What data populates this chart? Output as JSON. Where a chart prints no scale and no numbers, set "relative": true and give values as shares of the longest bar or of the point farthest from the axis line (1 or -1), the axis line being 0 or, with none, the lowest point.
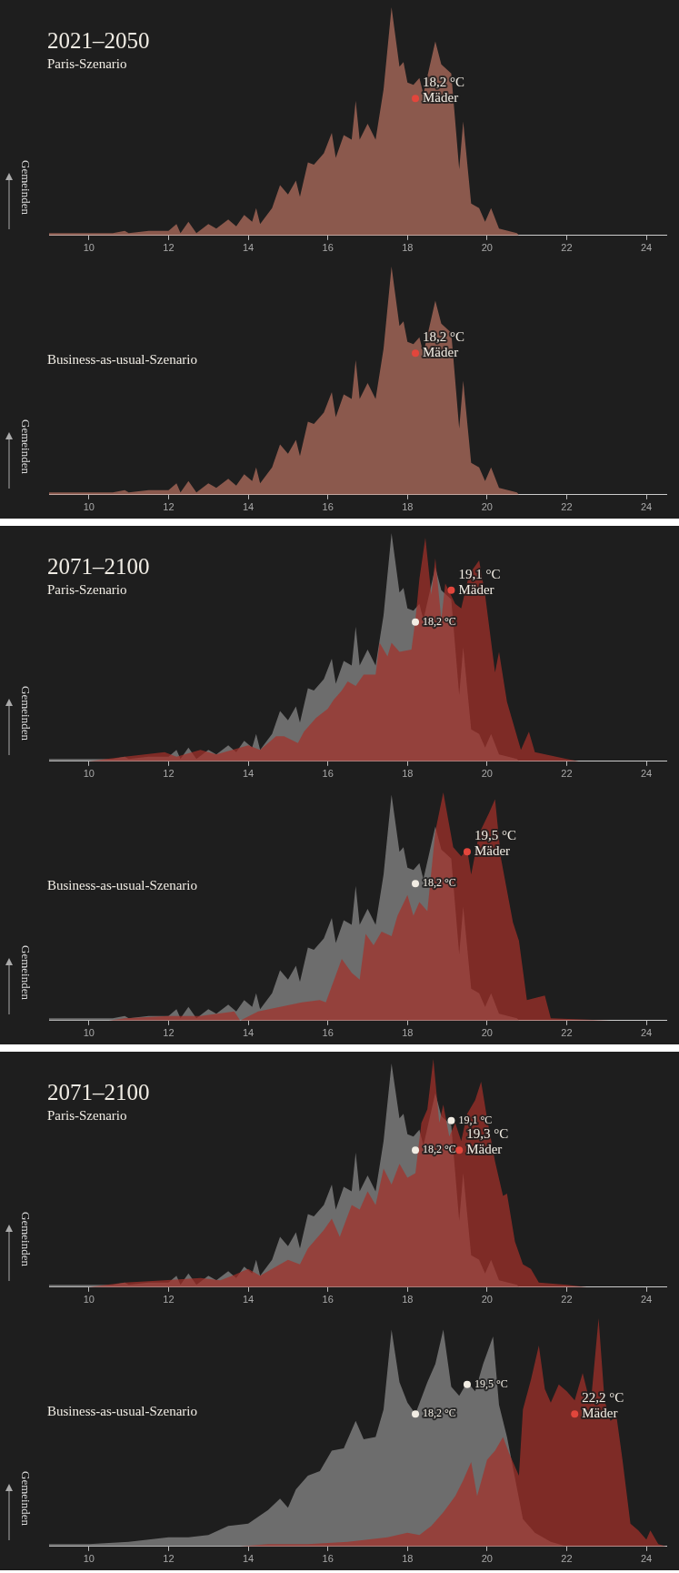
{
  "chart_data": [
    {
      "type": "area",
      "title": "2021–2050",
      "subtitle": "Paris-Szenario",
      "ylabel": "Gemeinden",
      "relative": true,
      "xlim": [
        9,
        24.5
      ],
      "xticks": [
        10,
        12,
        14,
        16,
        18,
        20,
        22,
        24
      ],
      "series": [
        {
          "color": "#b5705f",
          "x": [
            9.0,
            10.6,
            10.9,
            11.0,
            11.5,
            12.0,
            12.2,
            12.3,
            12.5,
            12.7,
            13.0,
            13.2,
            13.5,
            13.7,
            13.9,
            14.1,
            14.2,
            14.3,
            14.6,
            14.8,
            15.0,
            15.2,
            15.3,
            15.5,
            15.65,
            15.9,
            16.1,
            16.2,
            16.4,
            16.6,
            16.7,
            16.8,
            17.0,
            17.2,
            17.4,
            17.6,
            17.8,
            17.9,
            18.0,
            18.15,
            18.3,
            18.4,
            18.7,
            18.85,
            19.1,
            19.3,
            19.4,
            19.6,
            19.8,
            19.95,
            20.1,
            20.3,
            20.75,
            20.8
          ],
          "values": [
            0.01,
            0.01,
            0.02,
            0.01,
            0.02,
            0.02,
            0.05,
            0.01,
            0.06,
            0.01,
            0.05,
            0.03,
            0.07,
            0.04,
            0.09,
            0.06,
            0.12,
            0.05,
            0.12,
            0.22,
            0.18,
            0.24,
            0.17,
            0.32,
            0.31,
            0.36,
            0.45,
            0.34,
            0.44,
            0.42,
            0.59,
            0.42,
            0.49,
            0.42,
            0.64,
            1.0,
            0.74,
            0.76,
            0.67,
            0.66,
            0.69,
            0.62,
            0.85,
            0.75,
            0.71,
            0.29,
            0.5,
            0.14,
            0.12,
            0.06,
            0.12,
            0.03,
            0.01,
            0
          ]
        }
      ],
      "annotations": [
        {
          "text": "18,2 °C\nMäder",
          "x": 18.2,
          "y": 0.6
        }
      ]
    },
    {
      "type": "area",
      "subtitle": "Business-as-usual-Szenario",
      "ylabel": "Gemeinden",
      "relative": true,
      "xlim": [
        9,
        24.5
      ],
      "xticks": [
        10,
        12,
        14,
        16,
        18,
        20,
        22,
        24
      ],
      "series": [
        {
          "color": "#b5705f",
          "x": [
            9.0,
            10.6,
            10.9,
            11.0,
            11.5,
            12.0,
            12.2,
            12.3,
            12.5,
            12.7,
            13.0,
            13.2,
            13.5,
            13.7,
            13.9,
            14.1,
            14.2,
            14.3,
            14.6,
            14.8,
            15.0,
            15.2,
            15.3,
            15.5,
            15.65,
            15.9,
            16.1,
            16.2,
            16.4,
            16.6,
            16.7,
            16.8,
            17.0,
            17.2,
            17.4,
            17.6,
            17.8,
            17.9,
            18.0,
            18.15,
            18.3,
            18.4,
            18.7,
            18.85,
            19.1,
            19.3,
            19.4,
            19.6,
            19.8,
            19.95,
            20.1,
            20.3,
            20.75,
            20.8
          ],
          "values": [
            0.01,
            0.01,
            0.02,
            0.01,
            0.02,
            0.02,
            0.05,
            0.01,
            0.06,
            0.01,
            0.05,
            0.03,
            0.07,
            0.04,
            0.09,
            0.06,
            0.12,
            0.05,
            0.12,
            0.22,
            0.18,
            0.24,
            0.17,
            0.32,
            0.31,
            0.36,
            0.45,
            0.34,
            0.44,
            0.42,
            0.59,
            0.42,
            0.49,
            0.42,
            0.64,
            1.0,
            0.74,
            0.76,
            0.67,
            0.66,
            0.69,
            0.62,
            0.85,
            0.75,
            0.71,
            0.29,
            0.5,
            0.14,
            0.12,
            0.06,
            0.12,
            0.03,
            0.01,
            0
          ]
        }
      ],
      "annotations": [
        {
          "text": "18,2 °C\nMäder",
          "x": 18.2,
          "y": 0.62
        }
      ]
    },
    {
      "type": "area",
      "title": "2071–2100",
      "subtitle": "Paris-Szenario",
      "ylabel": "Gemeinden",
      "relative": true,
      "xlim": [
        9,
        24.5
      ],
      "xticks": [
        10,
        12,
        14,
        16,
        18,
        20,
        22,
        24
      ],
      "series": [
        {
          "color": "#8c8c8c",
          "x": [
            9.0,
            10.6,
            10.9,
            11.0,
            11.5,
            12.0,
            12.2,
            12.3,
            12.5,
            12.7,
            13.0,
            13.2,
            13.5,
            13.7,
            13.9,
            14.1,
            14.2,
            14.3,
            14.6,
            14.8,
            15.0,
            15.2,
            15.3,
            15.5,
            15.65,
            15.9,
            16.1,
            16.2,
            16.4,
            16.6,
            16.7,
            16.8,
            17.0,
            17.2,
            17.4,
            17.6,
            17.8,
            17.9,
            18.0,
            18.15,
            18.3,
            18.4,
            18.7,
            18.85,
            19.1,
            19.3,
            19.4,
            19.6,
            19.8,
            19.95,
            20.1,
            20.3,
            20.75,
            20.8
          ],
          "values": [
            0.01,
            0.01,
            0.02,
            0.01,
            0.02,
            0.02,
            0.05,
            0.01,
            0.06,
            0.01,
            0.05,
            0.03,
            0.07,
            0.04,
            0.09,
            0.06,
            0.12,
            0.05,
            0.12,
            0.22,
            0.18,
            0.24,
            0.17,
            0.32,
            0.31,
            0.36,
            0.45,
            0.34,
            0.44,
            0.42,
            0.59,
            0.42,
            0.49,
            0.42,
            0.64,
            1.0,
            0.74,
            0.76,
            0.67,
            0.66,
            0.69,
            0.62,
            0.85,
            0.75,
            0.71,
            0.29,
            0.5,
            0.14,
            0.12,
            0.06,
            0.12,
            0.03,
            0.01,
            0
          ]
        },
        {
          "color": "#a3302a",
          "x": [
            10.0,
            10.9,
            11.9,
            12.2,
            12.8,
            13.2,
            13.6,
            14.0,
            14.3,
            14.7,
            14.9,
            15.25,
            15.4,
            15.7,
            16.0,
            16.15,
            16.35,
            16.5,
            16.7,
            16.9,
            17.2,
            17.3,
            17.5,
            17.6,
            17.8,
            18.1,
            18.2,
            18.3,
            18.45,
            18.6,
            18.7,
            18.85,
            18.95,
            19.2,
            19.35,
            19.55,
            19.8,
            19.95,
            20.2,
            20.3,
            20.5,
            20.85,
            21.05,
            21.2,
            22.0,
            22.3
          ],
          "values": [
            0,
            0.02,
            0.04,
            0.02,
            0.05,
            0.03,
            0.05,
            0.07,
            0.05,
            0.11,
            0.11,
            0.08,
            0.13,
            0.19,
            0.23,
            0.27,
            0.31,
            0.35,
            0.33,
            0.38,
            0.38,
            0.52,
            0.46,
            0.52,
            0.48,
            0.49,
            0.62,
            0.8,
            0.98,
            0.73,
            0.89,
            0.62,
            0.78,
            0.69,
            0.67,
            0.82,
            0.88,
            0.73,
            0.39,
            0.48,
            0.26,
            0.05,
            0.13,
            0.04,
            0.01,
            0
          ]
        }
      ],
      "annotations": [
        {
          "text": "18,2 °C",
          "x": 18.2,
          "y": 0.61
        },
        {
          "text": "19,1 °C\nMäder",
          "x": 19.1,
          "y": 0.75
        }
      ]
    },
    {
      "type": "area",
      "subtitle": "Business-as-usual-Szenario",
      "ylabel": "Gemeinden",
      "relative": true,
      "xlim": [
        9,
        24.5
      ],
      "xticks": [
        10,
        12,
        14,
        16,
        18,
        20,
        22,
        24
      ],
      "series": [
        {
          "color": "#8c8c8c",
          "x": [
            9.0,
            10.6,
            10.9,
            11.0,
            11.5,
            12.0,
            12.2,
            12.3,
            12.5,
            12.7,
            13.0,
            13.2,
            13.5,
            13.7,
            13.9,
            14.1,
            14.2,
            14.3,
            14.6,
            14.8,
            15.0,
            15.2,
            15.3,
            15.5,
            15.65,
            15.9,
            16.1,
            16.2,
            16.4,
            16.6,
            16.7,
            16.8,
            17.0,
            17.2,
            17.4,
            17.6,
            17.8,
            17.9,
            18.0,
            18.15,
            18.3,
            18.4,
            18.7,
            18.85,
            19.1,
            19.3,
            19.4,
            19.6,
            19.8,
            19.95,
            20.1,
            20.3,
            20.75,
            20.8
          ],
          "values": [
            0.01,
            0.01,
            0.02,
            0.01,
            0.02,
            0.02,
            0.05,
            0.01,
            0.06,
            0.01,
            0.05,
            0.03,
            0.07,
            0.04,
            0.09,
            0.06,
            0.12,
            0.05,
            0.12,
            0.22,
            0.18,
            0.24,
            0.17,
            0.32,
            0.31,
            0.36,
            0.45,
            0.34,
            0.44,
            0.42,
            0.59,
            0.42,
            0.49,
            0.42,
            0.64,
            0.99,
            0.74,
            0.76,
            0.67,
            0.66,
            0.69,
            0.62,
            0.85,
            0.75,
            0.71,
            0.29,
            0.5,
            0.14,
            0.12,
            0.06,
            0.12,
            0.03,
            0.01,
            0
          ]
        },
        {
          "color": "#a3302a",
          "x": [
            10.5,
            10.9,
            12.0,
            12.8,
            13.65,
            13.8,
            14.25,
            14.8,
            15.35,
            15.8,
            15.95,
            16.35,
            16.6,
            16.8,
            16.95,
            17.15,
            17.35,
            17.6,
            17.75,
            18.0,
            18.15,
            18.3,
            18.5,
            18.7,
            18.9,
            19.15,
            19.35,
            19.5,
            19.6,
            19.8,
            20.05,
            20.2,
            20.35,
            20.65,
            20.8,
            21.0,
            21.45,
            21.6,
            23.1
          ],
          "values": [
            0,
            0.01,
            0.02,
            0.02,
            0.04,
            0,
            0.04,
            0.06,
            0.08,
            0.09,
            0.08,
            0.27,
            0.21,
            0.18,
            0.38,
            0.33,
            0.39,
            0.37,
            0.46,
            0.55,
            0.46,
            0.52,
            0.48,
            0.83,
            1.0,
            0.76,
            0.72,
            0.75,
            0.64,
            0.82,
            0.91,
            0.97,
            0.71,
            0.43,
            0.35,
            0.09,
            0.11,
            0.01,
            0
          ]
        }
      ],
      "annotations": [
        {
          "text": "18,2 °C",
          "x": 18.2,
          "y": 0.6
        },
        {
          "text": "19,5 °C\nMäder",
          "x": 19.5,
          "y": 0.74
        }
      ]
    },
    {
      "type": "area",
      "title": "2071–2100",
      "subtitle": "Paris-Szenario",
      "ylabel": "Gemeinden",
      "relative": true,
      "xlim": [
        9,
        24.5
      ],
      "xticks": [
        10,
        12,
        14,
        16,
        18,
        20,
        22,
        24
      ],
      "series": [
        {
          "color": "#8c8c8c",
          "x": [
            9.0,
            10.6,
            10.9,
            11.0,
            11.5,
            12.0,
            12.2,
            12.3,
            12.5,
            12.7,
            13.0,
            13.2,
            13.5,
            13.7,
            13.9,
            14.1,
            14.2,
            14.3,
            14.6,
            14.8,
            15.0,
            15.2,
            15.3,
            15.5,
            15.65,
            15.9,
            16.1,
            16.2,
            16.4,
            16.6,
            16.7,
            16.8,
            17.0,
            17.2,
            17.4,
            17.6,
            17.8,
            17.9,
            18.0,
            18.15,
            18.3,
            18.4,
            18.7,
            18.85,
            19.1,
            19.3,
            19.4,
            19.6,
            19.8,
            19.95,
            20.1,
            20.3,
            20.75,
            20.8
          ],
          "values": [
            0.01,
            0.01,
            0.02,
            0.01,
            0.02,
            0.02,
            0.05,
            0.01,
            0.06,
            0.01,
            0.05,
            0.03,
            0.07,
            0.04,
            0.09,
            0.06,
            0.12,
            0.05,
            0.12,
            0.22,
            0.18,
            0.24,
            0.17,
            0.32,
            0.31,
            0.36,
            0.45,
            0.34,
            0.44,
            0.42,
            0.59,
            0.42,
            0.49,
            0.42,
            0.64,
            0.98,
            0.74,
            0.76,
            0.67,
            0.66,
            0.69,
            0.62,
            0.85,
            0.75,
            0.71,
            0.29,
            0.5,
            0.14,
            0.12,
            0.06,
            0.12,
            0.03,
            0.01,
            0
          ]
        },
        {
          "color": "#a3302a",
          "x": [
            10.0,
            10.9,
            11.9,
            12.8,
            13.3,
            13.6,
            14.0,
            14.3,
            14.7,
            15.0,
            15.3,
            15.5,
            15.9,
            16.1,
            16.3,
            16.6,
            16.8,
            17.0,
            17.2,
            17.4,
            17.6,
            17.8,
            18.0,
            18.2,
            18.35,
            18.5,
            18.65,
            18.8,
            18.9,
            19.05,
            19.2,
            19.35,
            19.5,
            19.7,
            19.85,
            20.0,
            20.2,
            20.4,
            20.5,
            20.7,
            20.9,
            21.1,
            21.3,
            22.0,
            22.5
          ],
          "values": [
            0,
            0.02,
            0.03,
            0.04,
            0.03,
            0.05,
            0.08,
            0.05,
            0.09,
            0.12,
            0.1,
            0.17,
            0.25,
            0.3,
            0.22,
            0.36,
            0.34,
            0.42,
            0.36,
            0.52,
            0.45,
            0.54,
            0.48,
            0.5,
            0.72,
            0.78,
            1.0,
            0.72,
            0.8,
            0.66,
            0.72,
            0.64,
            0.76,
            0.82,
            0.9,
            0.74,
            0.55,
            0.4,
            0.41,
            0.2,
            0.1,
            0.08,
            0.02,
            0.01,
            0
          ]
        }
      ],
      "annotations": [
        {
          "text": "18,2 °C",
          "x": 18.2,
          "y": 0.6
        },
        {
          "text": "19,1 °C",
          "x": 19.1,
          "y": 0.73
        },
        {
          "text": "19,3 °C\nMäder",
          "x": 19.3,
          "y": 0.6
        }
      ]
    },
    {
      "type": "area",
      "subtitle": "Business-as-usual-Szenario",
      "ylabel": "Gemeinden",
      "relative": true,
      "xlim": [
        9,
        24.5
      ],
      "xticks": [
        10,
        12,
        14,
        16,
        18,
        20,
        22,
        24
      ],
      "series": [
        {
          "color": "#8c8c8c",
          "x": [
            9.0,
            10.0,
            11.0,
            12.0,
            12.5,
            13.0,
            13.5,
            14.0,
            14.5,
            14.8,
            15.0,
            15.2,
            15.5,
            15.8,
            16.1,
            16.4,
            16.7,
            16.9,
            17.2,
            17.4,
            17.6,
            17.8,
            18.0,
            18.2,
            18.5,
            18.7,
            18.9,
            19.1,
            19.3,
            19.5,
            19.7,
            19.9,
            20.15,
            20.3,
            20.5,
            20.7,
            20.9,
            21.2,
            21.6,
            22.0
          ],
          "values": [
            0.01,
            0.01,
            0.02,
            0.04,
            0.04,
            0.05,
            0.09,
            0.1,
            0.16,
            0.21,
            0.17,
            0.25,
            0.31,
            0.33,
            0.42,
            0.43,
            0.55,
            0.47,
            0.48,
            0.6,
            0.95,
            0.72,
            0.63,
            0.58,
            0.72,
            0.8,
            0.95,
            0.7,
            0.66,
            0.72,
            0.68,
            0.8,
            0.92,
            0.62,
            0.48,
            0.3,
            0.12,
            0.06,
            0.02,
            0
          ]
        },
        {
          "color": "#a3302a",
          "x": [
            13.8,
            14.5,
            15.5,
            16.5,
            17.0,
            17.5,
            18.0,
            18.3,
            18.6,
            18.9,
            19.2,
            19.4,
            19.6,
            19.75,
            20.0,
            20.2,
            20.4,
            20.55,
            20.8,
            20.9,
            21.1,
            21.3,
            21.45,
            21.6,
            21.8,
            22.0,
            22.2,
            22.4,
            22.6,
            22.8,
            22.95,
            23.1,
            23.25,
            23.4,
            23.6,
            23.8,
            24.0,
            24.1,
            24.3,
            24.5
          ],
          "values": [
            0,
            0.01,
            0.01,
            0.02,
            0.03,
            0.04,
            0.06,
            0.05,
            0.09,
            0.15,
            0.22,
            0.29,
            0.37,
            0.22,
            0.38,
            0.42,
            0.48,
            0.41,
            0.31,
            0.6,
            0.73,
            0.88,
            0.69,
            0.63,
            0.71,
            0.68,
            0.64,
            0.76,
            0.62,
            1.0,
            0.64,
            0.55,
            0.57,
            0.38,
            0.1,
            0.07,
            0.03,
            0.07,
            0.01,
            0
          ]
        }
      ],
      "annotations": [
        {
          "text": "18,2 °C",
          "x": 18.2,
          "y": 0.58
        },
        {
          "text": "19,5 °C",
          "x": 19.5,
          "y": 0.71
        },
        {
          "text": "22,2 °C\nMäder",
          "x": 22.2,
          "y": 0.58
        }
      ]
    }
  ]
}
